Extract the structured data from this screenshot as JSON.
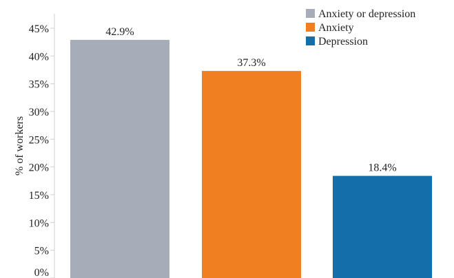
{
  "chart_data": {
    "type": "bar",
    "categories": [
      "Anxiety or depression",
      "Anxiety",
      "Depression"
    ],
    "values": [
      42.9,
      37.3,
      18.4
    ],
    "value_labels": [
      "42.9%",
      "37.3%",
      "18.4%"
    ],
    "colors": [
      "#a7adb8",
      "#f07f22",
      "#136eaa"
    ],
    "title": "",
    "xlabel": "",
    "ylabel": "% of workers",
    "ylim": [
      0,
      45
    ],
    "yticks": [
      0,
      5,
      10,
      15,
      20,
      25,
      30,
      35,
      40,
      45
    ],
    "ytick_labels": [
      "0%",
      "5%",
      "10%",
      "15%",
      "20%",
      "25%",
      "30%",
      "35%",
      "40%",
      "45%"
    ],
    "grid": false,
    "legend": {
      "position": "top-right",
      "entries": [
        {
          "label": "Anxiety or depression",
          "color": "#a7adb8"
        },
        {
          "label": "Anxiety",
          "color": "#f07f22"
        },
        {
          "label": "Depression",
          "color": "#136eaa"
        }
      ]
    }
  }
}
